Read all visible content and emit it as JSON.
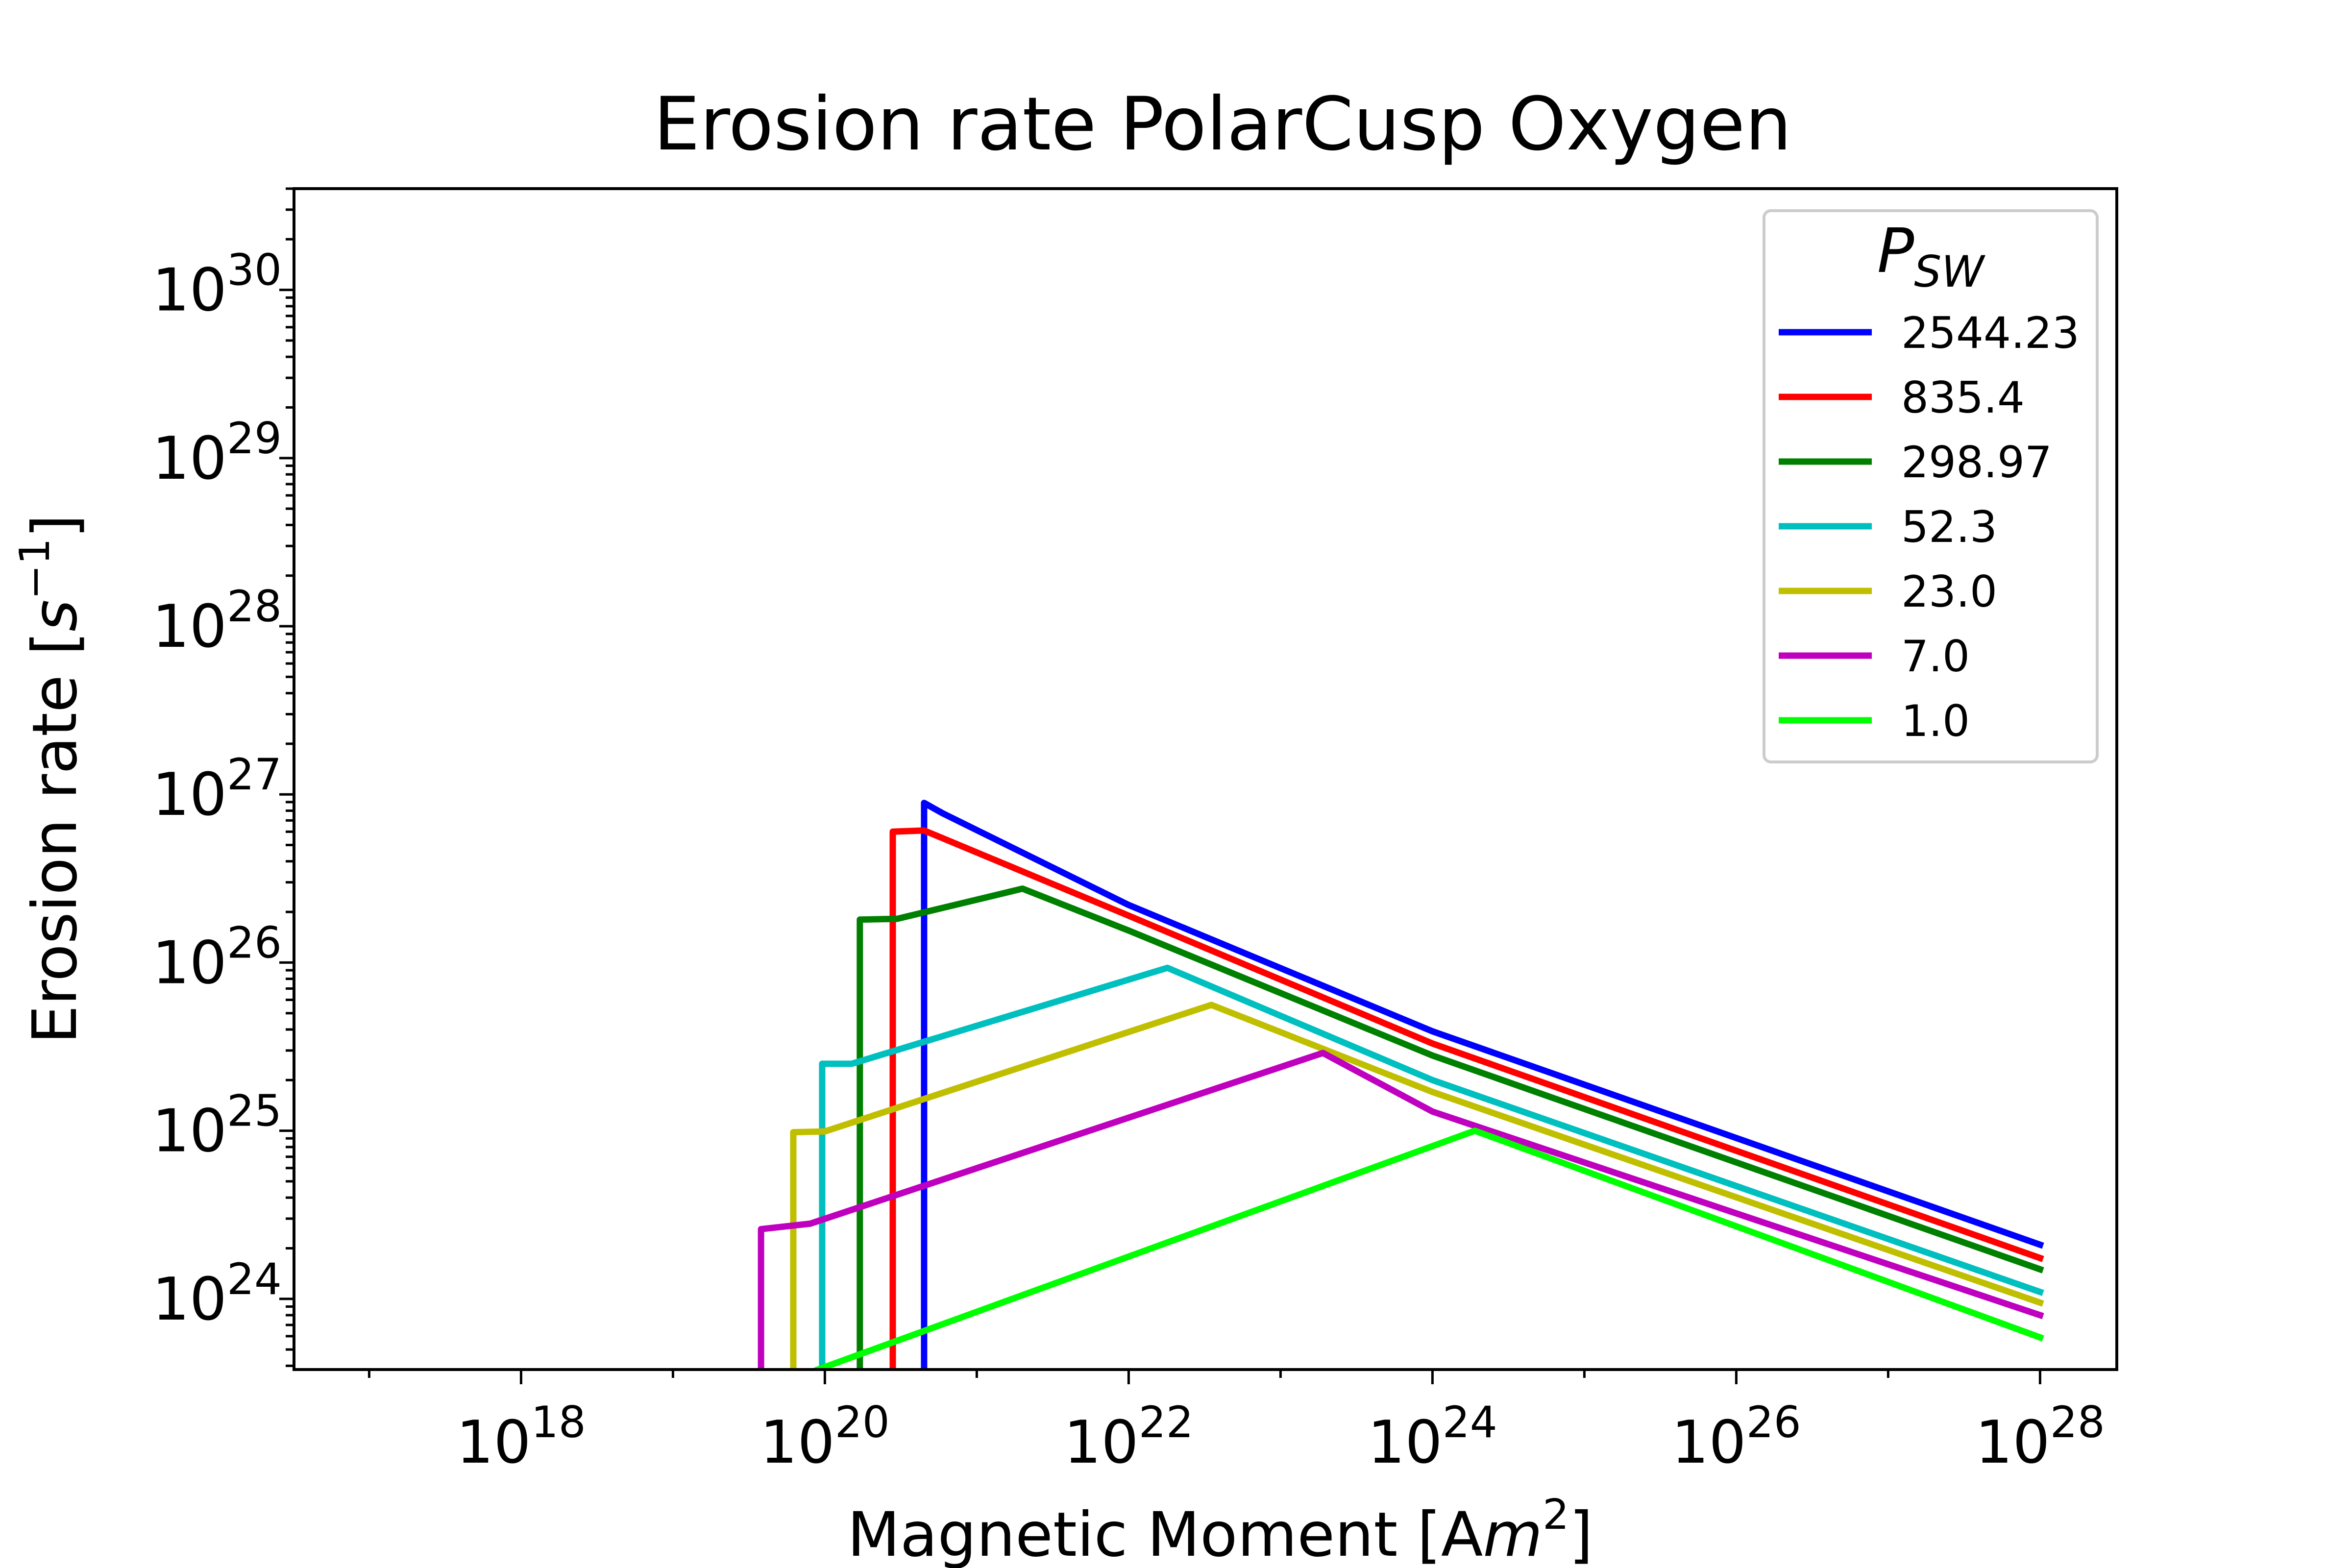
{
  "chart_data": {
    "type": "line",
    "title": "Erosion rate PolarCusp Oxygen",
    "xlabel": "Magnetic Moment [Am²]",
    "xlabel_parts": {
      "text": "Magnetic Moment [A",
      "var": "m",
      "exp": "2",
      "close": "]"
    },
    "ylabel": "Erosion rate [s⁻¹]",
    "ylabel_parts": {
      "text": "Erosion rate [",
      "var": "s",
      "exp": "−1",
      "close": "]"
    },
    "xscale": "log",
    "yscale": "log",
    "xlim": [
      3.2e+16,
      3.2e+28
    ],
    "ylim": [
      3.8e+23,
      4e+30
    ],
    "xticks": [
      {
        "base": "10",
        "exp": "18",
        "value": 1e+18
      },
      {
        "base": "10",
        "exp": "20",
        "value": 1e+20
      },
      {
        "base": "10",
        "exp": "22",
        "value": 1e+22
      },
      {
        "base": "10",
        "exp": "24",
        "value": 1e+24
      },
      {
        "base": "10",
        "exp": "26",
        "value": 1e+26
      },
      {
        "base": "10",
        "exp": "28",
        "value": 1e+28
      }
    ],
    "yticks": [
      {
        "base": "10",
        "exp": "24",
        "value": 1e+24
      },
      {
        "base": "10",
        "exp": "25",
        "value": 1e+25
      },
      {
        "base": "10",
        "exp": "26",
        "value": 1e+26
      },
      {
        "base": "10",
        "exp": "27",
        "value": 1e+27
      },
      {
        "base": "10",
        "exp": "28",
        "value": 1e+28
      },
      {
        "base": "10",
        "exp": "29",
        "value": 1e+29
      },
      {
        "base": "10",
        "exp": "30",
        "value": 1e+30
      }
    ],
    "grid": false,
    "legend": {
      "placement": "top-right",
      "title": "P",
      "title_sub": "SW"
    },
    "series": [
      {
        "name": "2544.23",
        "color": "#0000ff",
        "points": [
          [
            4.5e+20,
            3.8e+23
          ],
          [
            4.5e+20,
            8.9e+26
          ],
          [
            6e+20,
            7.7e+26
          ],
          [
            1e+22,
            2.2e+26
          ],
          [
            1e+24,
            3.9e+25
          ],
          [
            1e+28,
            2.1e+24
          ]
        ]
      },
      {
        "name": "835.4",
        "color": "#ff0000",
        "points": [
          [
            2.8e+20,
            3.8e+23
          ],
          [
            2.8e+20,
            6e+26
          ],
          [
            4.5e+20,
            6.1e+26
          ],
          [
            1e+22,
            1.9e+26
          ],
          [
            1e+24,
            3.3e+25
          ],
          [
            1e+28,
            1.75e+24
          ]
        ]
      },
      {
        "name": "298.97",
        "color": "#008000",
        "points": [
          [
            1.7e+20,
            3.8e+23
          ],
          [
            1.7e+20,
            1.8e+26
          ],
          [
            3e+20,
            1.82e+26
          ],
          [
            2e+21,
            2.75e+26
          ],
          [
            1e+22,
            1.55e+26
          ],
          [
            1e+24,
            2.8e+25
          ],
          [
            1e+28,
            1.5e+24
          ]
        ]
      },
      {
        "name": "52.3",
        "color": "#00bfbf",
        "points": [
          [
            9.6e+19,
            3.8e+23
          ],
          [
            9.6e+19,
            2.5e+25
          ],
          [
            1.5e+20,
            2.5e+25
          ],
          [
            1.8e+22,
            9.3e+25
          ],
          [
            1e+24,
            2e+25
          ],
          [
            1e+28,
            1.1e+24
          ]
        ]
      },
      {
        "name": "23.0",
        "color": "#bfbf00",
        "points": [
          [
            6.2e+19,
            3.8e+23
          ],
          [
            6.2e+19,
            9.8e+24
          ],
          [
            1e+20,
            9.9e+24
          ],
          [
            3.5e+22,
            5.6e+25
          ],
          [
            1e+24,
            1.7e+25
          ],
          [
            1e+28,
            9.5e+23
          ]
        ]
      },
      {
        "name": "7.0",
        "color": "#bf00bf",
        "points": [
          [
            3.8e+19,
            3.8e+23
          ],
          [
            3.8e+19,
            2.6e+24
          ],
          [
            8e+19,
            2.8e+24
          ],
          [
            1.9e+23,
            2.9e+25
          ],
          [
            1e+24,
            1.3e+25
          ],
          [
            1e+28,
            8e+23
          ]
        ]
      },
      {
        "name": "1.0",
        "color": "#00ff00",
        "points": [
          [
            9e+19,
            3.8e+23
          ],
          [
            1.9e+24,
            1e+25
          ],
          [
            1e+28,
            5.9e+23
          ]
        ]
      }
    ]
  }
}
